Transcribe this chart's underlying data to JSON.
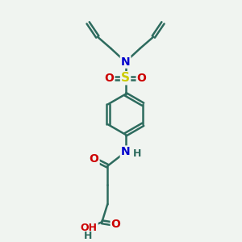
{
  "bg_color": "#f0f4f0",
  "atom_colors": {
    "C": "#2d6b5e",
    "N": "#0000cc",
    "O": "#cc0000",
    "S": "#cccc00",
    "H": "#2d6b5e"
  },
  "bond_color": "#2d6b5e",
  "line_width": 1.8,
  "font_size": 10,
  "fig_size": [
    3.0,
    3.0
  ],
  "dpi": 100
}
